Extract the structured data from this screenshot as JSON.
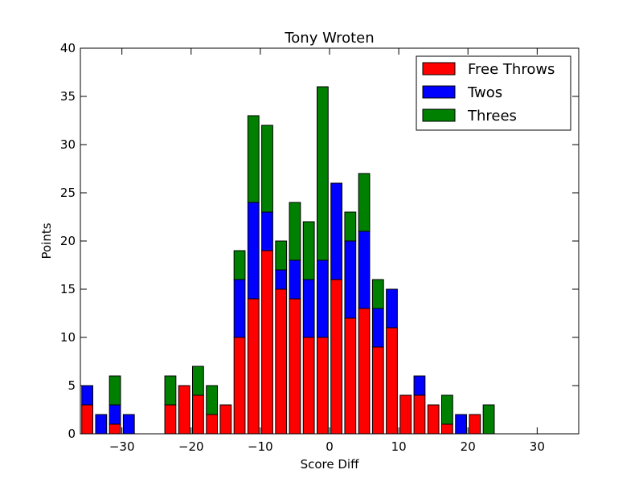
{
  "chart_data": {
    "type": "bar",
    "stacked": true,
    "title": "Tony Wroten",
    "xlabel": "Score Diff",
    "ylabel": "Points",
    "xlim": [
      -36,
      36
    ],
    "ylim": [
      0,
      40
    ],
    "xticks": [
      -30,
      -20,
      -10,
      0,
      10,
      20,
      30
    ],
    "yticks": [
      0,
      5,
      10,
      15,
      20,
      25,
      30,
      35,
      40
    ],
    "bar_width": 1.6,
    "grid": false,
    "legend_position": "top-right",
    "x": [
      -35,
      -33,
      -31,
      -29,
      -27,
      -25,
      -23,
      -21,
      -19,
      -17,
      -15,
      -13,
      -11,
      -9,
      -7,
      -5,
      -3,
      -1,
      1,
      3,
      5,
      7,
      9,
      11,
      13,
      15,
      17,
      19,
      21,
      23,
      25,
      27,
      29,
      31,
      33,
      35
    ],
    "series": [
      {
        "name": "Free Throws",
        "color": "#ff0000",
        "values": [
          3,
          0,
          1,
          0,
          0,
          0,
          3,
          5,
          4,
          2,
          3,
          10,
          14,
          19,
          15,
          14,
          10,
          10,
          16,
          12,
          13,
          9,
          11,
          4,
          4,
          3,
          1,
          0,
          2,
          0,
          0,
          0,
          0,
          0,
          0,
          0
        ]
      },
      {
        "name": "Twos",
        "color": "#0000ff",
        "values": [
          2,
          2,
          2,
          2,
          0,
          0,
          0,
          0,
          0,
          0,
          0,
          6,
          10,
          4,
          2,
          4,
          6,
          8,
          10,
          8,
          8,
          4,
          4,
          0,
          2,
          0,
          0,
          2,
          0,
          0,
          0,
          0,
          0,
          0,
          0,
          0
        ]
      },
      {
        "name": "Threes",
        "color": "#008000",
        "values": [
          0,
          0,
          3,
          0,
          0,
          0,
          3,
          0,
          3,
          3,
          0,
          3,
          9,
          9,
          3,
          6,
          6,
          18,
          0,
          3,
          6,
          3,
          0,
          0,
          0,
          0,
          3,
          0,
          0,
          3,
          0,
          0,
          0,
          0,
          0,
          0
        ]
      }
    ]
  }
}
